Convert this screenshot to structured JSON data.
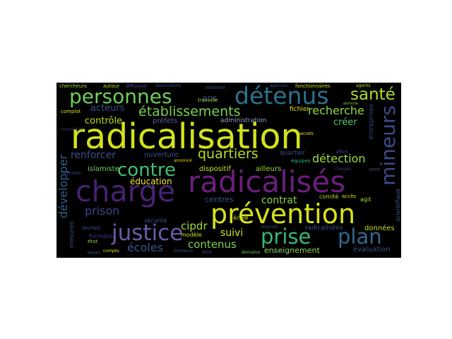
{
  "wordcloud": {
    "background": "#000000",
    "words": [
      {
        "text": "radicalisation",
        "color": "#d2e21b"
      },
      {
        "text": "radicalisés",
        "color": "#6a1f7b"
      },
      {
        "text": "charge",
        "color": "#482173"
      },
      {
        "text": "prévention",
        "color": "#d8e219"
      },
      {
        "text": "détenus",
        "color": "#2c728e"
      },
      {
        "text": "personnes",
        "color": "#6ece58"
      },
      {
        "text": "mineurs",
        "color": "#3e4a89"
      },
      {
        "text": "justice",
        "color": "#6b5ba8"
      },
      {
        "text": "prise",
        "color": "#35b779"
      },
      {
        "text": "plan",
        "color": "#31688e"
      },
      {
        "text": "contre",
        "color": "#43bf71"
      },
      {
        "text": "santé",
        "color": "#addc30"
      },
      {
        "text": "établissements",
        "color": "#7ad151"
      },
      {
        "text": "quartiers",
        "color": "#b5de2b"
      },
      {
        "text": "recherche",
        "color": "#8fd744"
      },
      {
        "text": "détection",
        "color": "#9fda3a"
      },
      {
        "text": "prison",
        "color": "#3f4788"
      },
      {
        "text": "développer",
        "color": "#355f8d"
      },
      {
        "text": "écoles",
        "color": "#39558c"
      },
      {
        "text": "contenus",
        "color": "#7fd34e"
      },
      {
        "text": "cipdr",
        "color": "#a0da39"
      },
      {
        "text": "suivi",
        "color": "#c8e020"
      },
      {
        "text": "contrat",
        "color": "#8bd646"
      },
      {
        "text": "renforcer",
        "color": "#3b528b"
      },
      {
        "text": "acteurs",
        "color": "#3e4c8a"
      },
      {
        "text": "contrôle",
        "color": "#bade28"
      },
      {
        "text": "éducation",
        "color": "#fde725"
      },
      {
        "text": "ans",
        "color": "#424086"
      },
      {
        "text": "créer",
        "color": "#50c46a"
      },
      {
        "text": "fichier",
        "color": "#e2e418"
      },
      {
        "text": "centres",
        "color": "#3a538b"
      },
      {
        "text": "enseignement",
        "color": "#8fd744"
      },
      {
        "text": "évaluation",
        "color": "#3c4f8a"
      },
      {
        "text": "données",
        "color": "#c2df23"
      },
      {
        "text": "ouverture",
        "color": "#3b528b"
      },
      {
        "text": "dispositif",
        "color": "#cae11f"
      },
      {
        "text": "ailleurs",
        "color": "#9dd93b"
      },
      {
        "text": "quartier",
        "color": "#3d4d8a"
      },
      {
        "text": "préfets",
        "color": "#5a5ea0"
      },
      {
        "text": "administration",
        "color": "#8fa0c8"
      },
      {
        "text": "entreprises",
        "color": "#3e4989"
      },
      {
        "text": "scientifique",
        "color": "#38598c"
      },
      {
        "text": "islamiste",
        "color": "#6ece58"
      },
      {
        "text": "mesures",
        "color": "#404688"
      },
      {
        "text": "formation",
        "color": "#443983"
      },
      {
        "text": "sécurité",
        "color": "#375a8c"
      },
      {
        "text": "radicalisées",
        "color": "#3b528b"
      },
      {
        "text": "modèle",
        "color": "#cfe11c"
      },
      {
        "text": "école",
        "color": "#d2e21b"
      },
      {
        "text": "comité",
        "color": "#b0dd2f"
      },
      {
        "text": "agit",
        "color": "#a5db36"
      },
      {
        "text": "accès",
        "color": "#e7e419"
      },
      {
        "text": "jeunes",
        "color": "#3e4a89"
      },
      {
        "text": "chercheurs",
        "color": "#a2da37"
      },
      {
        "text": "autour",
        "color": "#bddf26"
      },
      {
        "text": "diffusion",
        "color": "#4a4a9a"
      },
      {
        "text": "associations",
        "color": "#3b528b"
      },
      {
        "text": "national",
        "color": "#3e4c8a"
      },
      {
        "text": "agences",
        "color": "#39558c"
      },
      {
        "text": "fonctionnaires",
        "color": "#c5e021"
      },
      {
        "text": "agents",
        "color": "#b0dd2f"
      },
      {
        "text": "travaille",
        "color": "#95d840"
      },
      {
        "text": "complot",
        "color": "#cfe11c"
      },
      {
        "text": "loi",
        "color": "#3e4c8a"
      },
      {
        "text": "zone",
        "color": "#3e4c8a"
      },
      {
        "text": "chargés",
        "color": "#443983"
      },
      {
        "text": "équipes",
        "color": "#35b779"
      },
      {
        "text": "état",
        "color": "#8fd744"
      },
      {
        "text": "ministre",
        "color": "#3e4a89"
      },
      {
        "text": "compte",
        "color": "#e5e419"
      },
      {
        "text": "main",
        "color": "#3b528b"
      },
      {
        "text": "conviction",
        "color": "#414487"
      },
      {
        "text": "droit",
        "color": "#3b528b"
      },
      {
        "text": "domaine",
        "color": "#6ece58"
      },
      {
        "text": "aujourd",
        "color": "#3a538b"
      },
      {
        "text": "annoncé",
        "color": "#e5e419"
      },
      {
        "text": "secrets",
        "color": "#fde725"
      },
      {
        "text": "domicile",
        "color": "#6ece58"
      },
      {
        "text": "effort",
        "color": "#3e4a89"
      },
      {
        "text": "domesch",
        "color": "#3e4c8a"
      },
      {
        "text": "générale",
        "color": "#3e4c8a"
      }
    ]
  }
}
